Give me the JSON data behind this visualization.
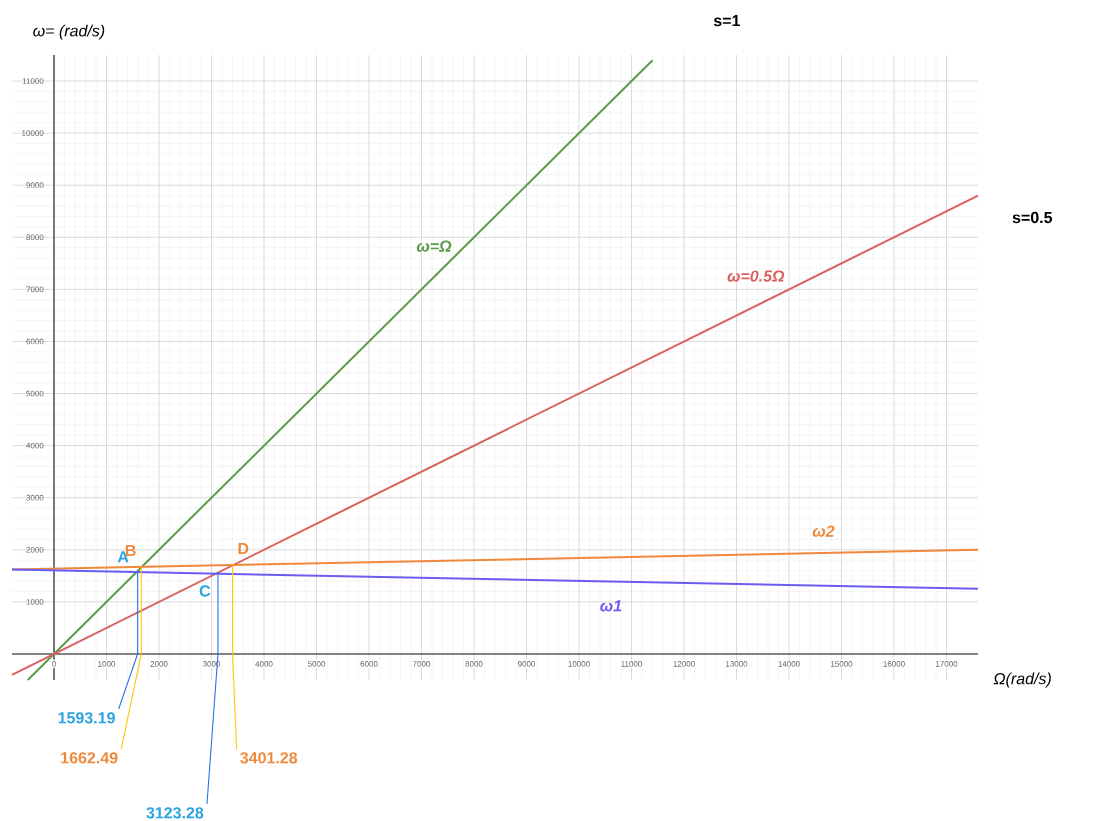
{
  "chart_data": {
    "type": "line",
    "xlabel": "Ω(rad/s)",
    "ylabel": "ω= (rad/s)",
    "xlim": [
      -800,
      17600
    ],
    "ylim": [
      -500,
      11500
    ],
    "xticks": [
      0,
      1000,
      2000,
      3000,
      4000,
      5000,
      6000,
      7000,
      8000,
      9000,
      10000,
      11000,
      12000,
      13000,
      14000,
      15000,
      16000,
      17000
    ],
    "yticks": [
      1000,
      2000,
      3000,
      4000,
      5000,
      6000,
      7000,
      8000,
      9000,
      10000,
      11000
    ],
    "grid": true,
    "series": [
      {
        "name": "ω=Ω",
        "color": "#5a9a4a",
        "x": [
          -500,
          11400
        ],
        "values": [
          -500,
          11400
        ]
      },
      {
        "name": "ω=0.5Ω",
        "color": "#d9605f",
        "x": [
          -800,
          17600
        ],
        "values": [
          -400,
          8800
        ]
      },
      {
        "name": "ω2",
        "color": "#f0883a",
        "x": [
          -800,
          17600
        ],
        "values": [
          1620,
          2000
        ]
      },
      {
        "name": "ω1",
        "color": "#6a5cf0",
        "x": [
          -800,
          17600
        ],
        "values": [
          1620,
          1250
        ]
      }
    ],
    "annotations": [
      "s=1",
      "s=0.5",
      {
        "text": "A",
        "x": 1593.19,
        "y": 1593.19
      },
      {
        "text": "B",
        "x": 1662.49,
        "y": 1662.49
      },
      {
        "text": "C",
        "x": 3123.28,
        "y": 1561.64
      },
      {
        "text": "D",
        "x": 3401.28,
        "y": 1700.64
      },
      {
        "text": "1593.19",
        "x": 1593.19,
        "y": 1593.19
      },
      {
        "text": "1662.49",
        "x": 1662.49,
        "y": 1662.49
      },
      {
        "text": "3123.28",
        "x": 3123.28,
        "y": 1561.64
      },
      {
        "text": "3401.28",
        "x": 3401.28,
        "y": 1700.64
      }
    ]
  }
}
